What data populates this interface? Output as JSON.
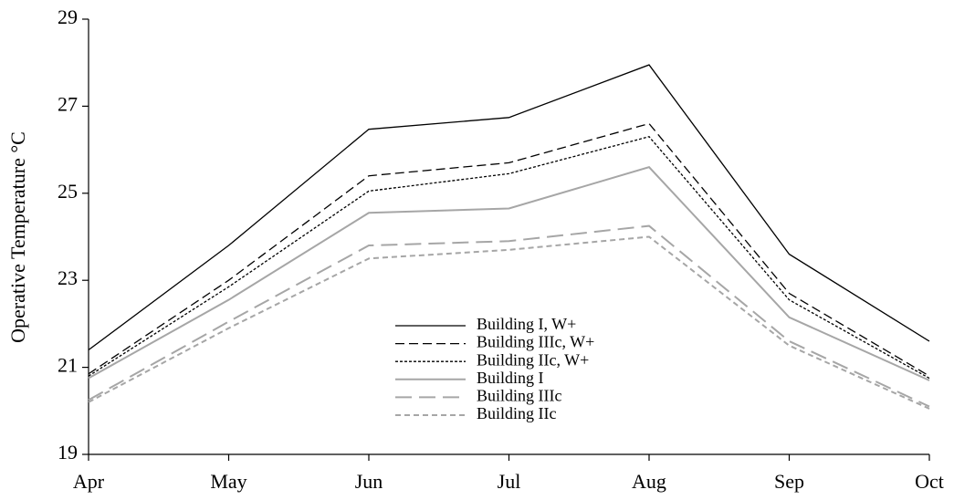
{
  "chart_data": {
    "type": "line",
    "y_label": "Operative Temperature °C",
    "categories": [
      "Apr",
      "May",
      "Jun",
      "Jul",
      "Aug",
      "Sep",
      "Oct"
    ],
    "ylim": [
      19,
      29
    ],
    "yticks": [
      19,
      21,
      23,
      25,
      27,
      29
    ],
    "series": [
      {
        "name": "Building I, W+",
        "color": "#000000",
        "dash": "solid",
        "values": [
          21.4,
          23.8,
          26.47,
          26.74,
          27.95,
          23.6,
          21.6
        ]
      },
      {
        "name": "Building IIIc, W+",
        "color": "#000000",
        "dash": "dashed",
        "values": [
          20.85,
          23.0,
          25.4,
          25.7,
          26.6,
          22.7,
          20.8
        ]
      },
      {
        "name": "Building IIc, W+",
        "color": "#000000",
        "dash": "dotted",
        "values": [
          20.8,
          22.85,
          25.05,
          25.45,
          26.3,
          22.55,
          20.75
        ]
      },
      {
        "name": "Building I",
        "color": "#a6a6a6",
        "dash": "solid",
        "values": [
          20.75,
          22.55,
          24.55,
          24.65,
          25.6,
          22.15,
          20.7
        ]
      },
      {
        "name": "Building IIIc",
        "color": "#a6a6a6",
        "dash": "longdash",
        "values": [
          20.25,
          22.05,
          23.8,
          23.9,
          24.25,
          21.6,
          20.1
        ]
      },
      {
        "name": "Building IIc",
        "color": "#a6a6a6",
        "dash": "shortdash",
        "values": [
          20.2,
          21.9,
          23.5,
          23.7,
          24.0,
          21.5,
          20.05
        ]
      }
    ]
  }
}
